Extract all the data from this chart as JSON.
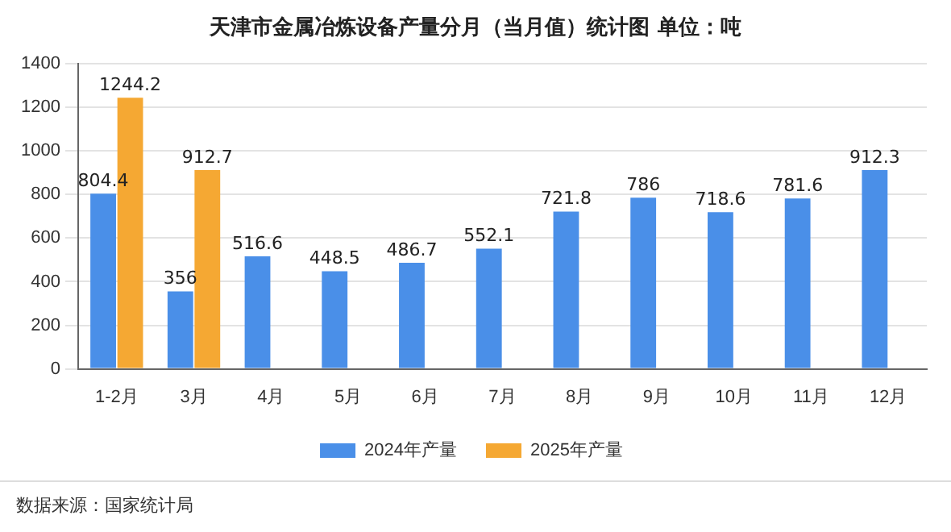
{
  "chart_data": {
    "type": "bar",
    "title": "天津市金属冶炼设备产量分月（当月值）统计图 单位：吨",
    "categories": [
      "1-2月",
      "3月",
      "4月",
      "5月",
      "6月",
      "7月",
      "8月",
      "9月",
      "10月",
      "11月",
      "12月"
    ],
    "series": [
      {
        "name": "2024年产量",
        "color": "#4a8fe8",
        "values": [
          804.4,
          356,
          516.6,
          448.5,
          486.7,
          552.1,
          721.8,
          786,
          718.6,
          781.6,
          912.3
        ]
      },
      {
        "name": "2025年产量",
        "color": "#f5a833",
        "values": [
          1244.2,
          912.7,
          null,
          null,
          null,
          null,
          null,
          null,
          null,
          null,
          null
        ]
      }
    ],
    "ylim": [
      0,
      1400
    ],
    "yticks": [
      0,
      200,
      400,
      600,
      800,
      1000,
      1200,
      1400
    ],
    "grid": "y",
    "legend": "bottom",
    "data_labels": true,
    "annotations": [
      "数据来源：国家统计局"
    ]
  }
}
